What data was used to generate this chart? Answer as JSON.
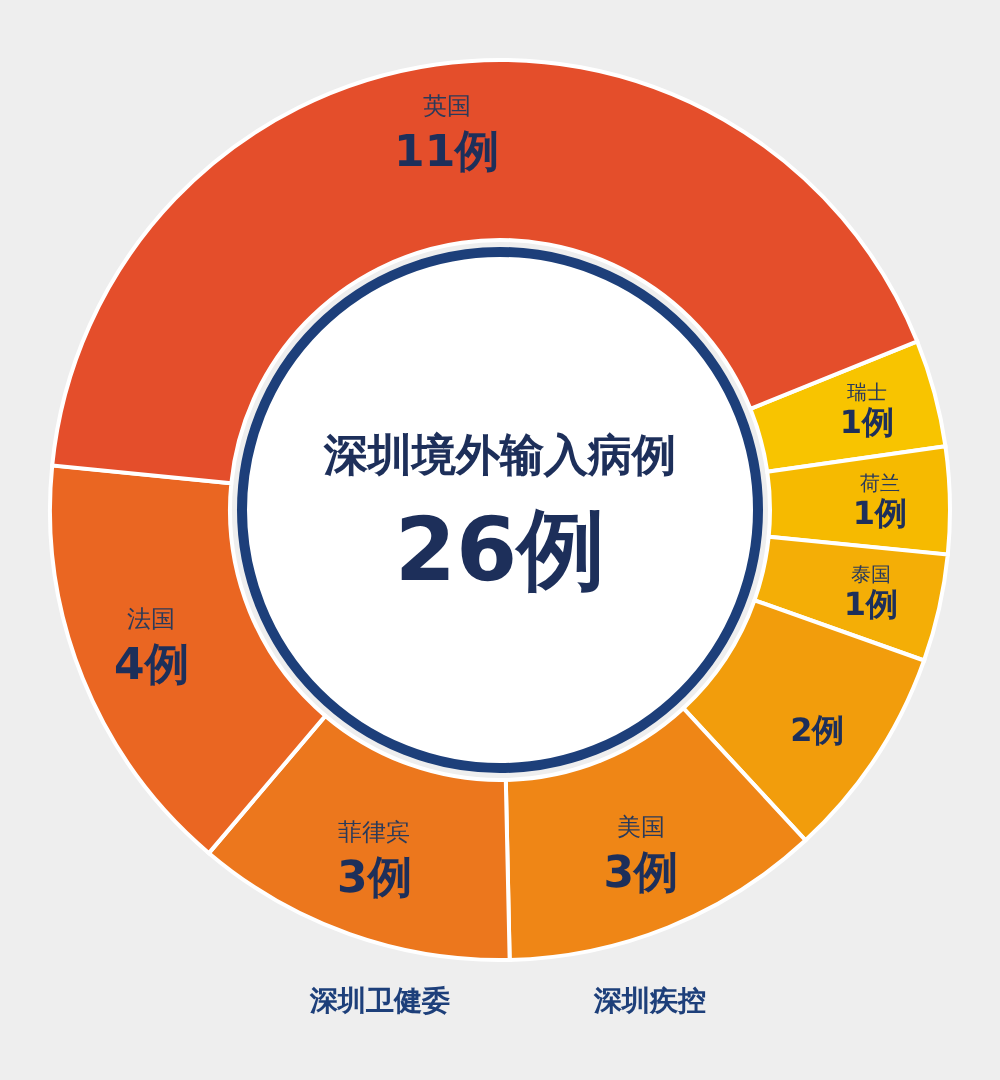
{
  "chart_data": {
    "type": "donut",
    "title": "深圳境外输入病例",
    "subtitle": "26例",
    "categories": [
      "瑞士",
      "荷兰",
      "泰国",
      null,
      "美国",
      "菲律宾",
      "法国",
      "英国"
    ],
    "values": [
      1,
      1,
      1,
      2,
      3,
      3,
      4,
      11
    ],
    "value_labels": [
      "1例",
      "1例",
      "1例",
      "2例",
      "3例",
      "3例",
      "4例",
      "11例"
    ],
    "colors": [
      "#f8c400",
      "#f6ba00",
      "#f4ae06",
      "#f29d0c",
      "#ef8616",
      "#ec771d",
      "#ea6622",
      "#e44e2b"
    ],
    "annotations": [
      "深圳卫健委",
      "深圳疾控"
    ]
  }
}
